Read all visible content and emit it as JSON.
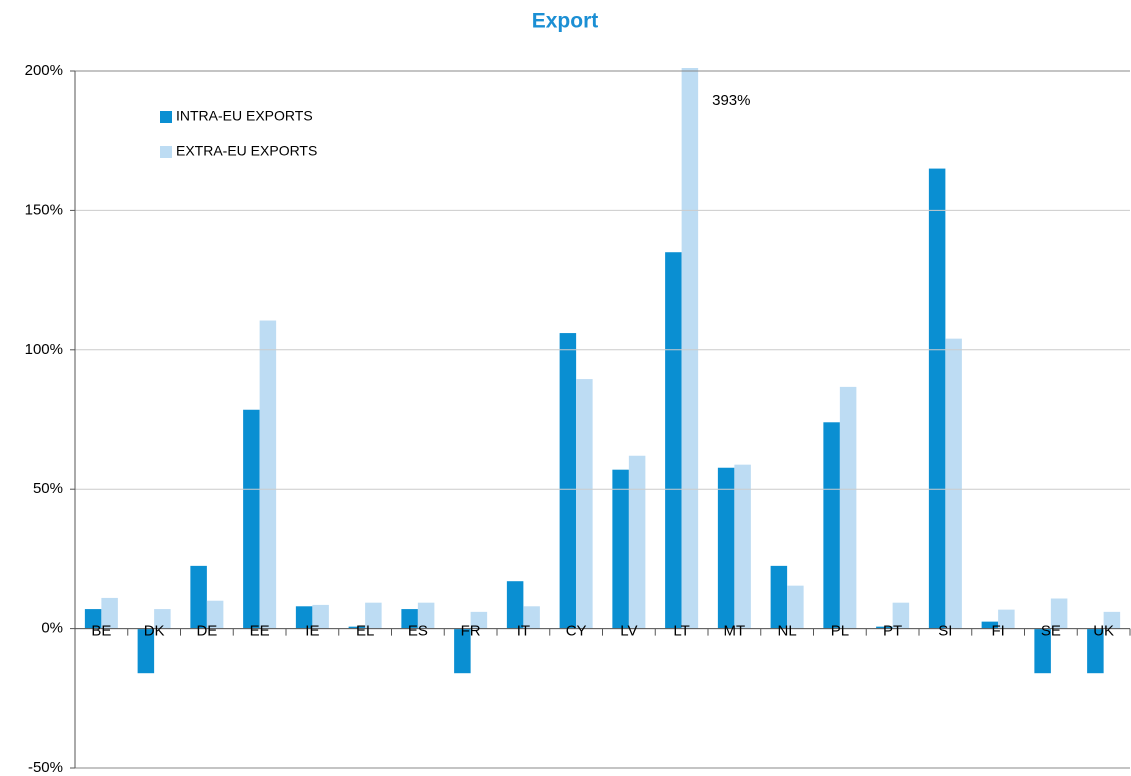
{
  "chart_data": {
    "type": "bar",
    "title": "Export",
    "categories": [
      "BE",
      "DK",
      "DE",
      "EE",
      "IE",
      "EL",
      "ES",
      "FR",
      "IT",
      "CY",
      "LV",
      "LT",
      "MT",
      "NL",
      "PL",
      "PT",
      "SI",
      "FI",
      "SE",
      "UK"
    ],
    "series": [
      {
        "name": "INTRA-EU EXPORTS",
        "color": "#0a8fd2",
        "values": [
          7,
          -16,
          22.5,
          78.5,
          8,
          0.7,
          7,
          -16,
          17,
          106,
          57,
          135,
          57.7,
          22.5,
          74,
          0.7,
          165,
          2.5,
          -16,
          -16
        ]
      },
      {
        "name": "EXTRA-EU EXPORTS",
        "color": "#bddcf3",
        "values": [
          11,
          7,
          10,
          110.5,
          8.5,
          9.3,
          9.3,
          6,
          8,
          89.5,
          62,
          393,
          58.8,
          15.4,
          86.7,
          9.3,
          104,
          6.8,
          10.8,
          6
        ],
        "value_labels": [
          null,
          null,
          null,
          null,
          null,
          null,
          null,
          null,
          null,
          null,
          null,
          "393%",
          null,
          null,
          null,
          null,
          null,
          null,
          null,
          null
        ]
      }
    ],
    "ylim": [
      -50,
      200
    ],
    "yticks": [
      {
        "value": -50,
        "label": "-50%"
      },
      {
        "value": 0,
        "label": "0%"
      },
      {
        "value": 50,
        "label": "50%"
      },
      {
        "value": 100,
        "label": "100%"
      },
      {
        "value": 150,
        "label": "150%"
      },
      {
        "value": 200,
        "label": "200%"
      }
    ],
    "grid": true,
    "legend": "upper left"
  }
}
